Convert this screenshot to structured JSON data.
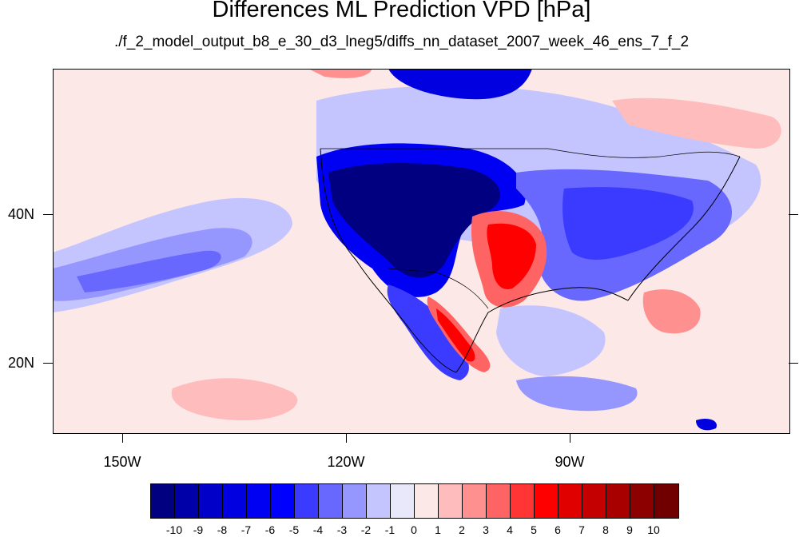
{
  "title": "Differences ML Prediction VPD [hPa]",
  "subtitle": "./f_2_model_output_b8_e_30_d3_lneg5/diffs_nn_dataset_2007_week_46_ens_7_f_2",
  "lon_labels": [
    "150W",
    "120W",
    "90W"
  ],
  "lat_labels": [
    "40N",
    "20N"
  ],
  "colorbar": {
    "labels": [
      "-10",
      "-9",
      "-8",
      "-7",
      "-6",
      "-5",
      "-4",
      "-3",
      "-2",
      "-1",
      "0",
      "1",
      "2",
      "3",
      "4",
      "5",
      "6",
      "7",
      "8",
      "9",
      "10"
    ],
    "colors": [
      "#000080",
      "#0000a8",
      "#0000c8",
      "#0000e0",
      "#0000f2",
      "#0000ff",
      "#3b3bff",
      "#6868ff",
      "#9696ff",
      "#c4c4ff",
      "#e8e8fa",
      "#fde8e8",
      "#ffbcbc",
      "#ff9090",
      "#ff6464",
      "#ff3434",
      "#ff0000",
      "#e00000",
      "#c40000",
      "#a80000",
      "#8c0000",
      "#700000"
    ]
  }
}
